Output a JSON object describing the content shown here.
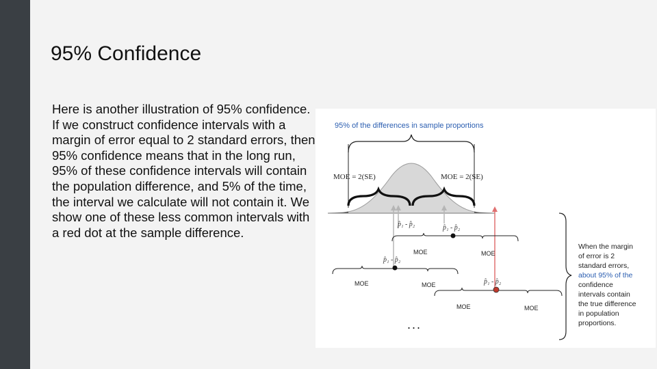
{
  "slide": {
    "title": "95% Confidence",
    "body": "Here is another illustration of 95% confidence. If we construct confidence intervals with a margin of error equal to 2 standard errors, then 95% confidence means that in the long run, 95% of these confidence intervals will contain the population difference, and 5% of the time, the interval we calculate will not contain it. We show one of these less common intervals with a red dot at the sample difference."
  },
  "figure": {
    "top_caption": "95% of the differences in sample proportions",
    "moe_left": "MOE = 2(SE)",
    "moe_right": "MOE = 2(SE)",
    "interval_label": "MOE",
    "diff_label": "p̂₁ - p̂₂",
    "ellipsis": "...",
    "side_note": {
      "line1": "When the margin",
      "line2": "of error is 2",
      "line3": "standard errors,",
      "line4": "about 95% of the",
      "line5": "confidence",
      "line6": "intervals contain",
      "line7": "the true difference",
      "line8": "in population",
      "line9": "proportions."
    },
    "colors": {
      "caption_blue": "#2a5db0",
      "red_dot": "#c0392b",
      "red_arrow": "#e07070",
      "curve_fill": "#d8d8d8",
      "tail_fill": "#555555"
    }
  }
}
